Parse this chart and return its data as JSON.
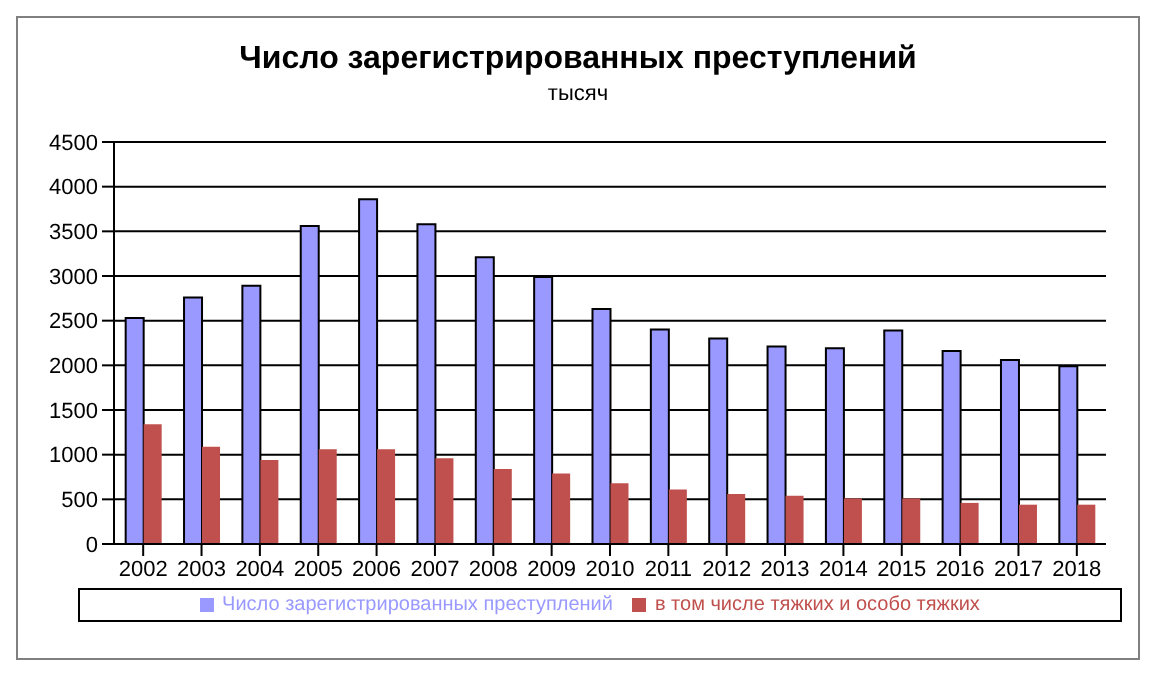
{
  "chart_data": {
    "type": "bar",
    "title": "Число зарегистрированных преступлений",
    "subtitle": "тысяч",
    "categories": [
      "2002",
      "2003",
      "2004",
      "2005",
      "2006",
      "2007",
      "2008",
      "2009",
      "2010",
      "2011",
      "2012",
      "2013",
      "2014",
      "2015",
      "2016",
      "2017",
      "2018"
    ],
    "series": [
      {
        "name": "Число зарегистрированных преступлений",
        "color": "#9999ff",
        "values": [
          2530,
          2760,
          2890,
          3560,
          3860,
          3580,
          3210,
          2990,
          2630,
          2400,
          2300,
          2210,
          2190,
          2390,
          2160,
          2060,
          1990
        ]
      },
      {
        "name": "в том числе тяжких и особо тяжких",
        "color": "#c0504d",
        "values": [
          1340,
          1090,
          940,
          1060,
          1060,
          960,
          840,
          790,
          680,
          610,
          560,
          540,
          510,
          510,
          460,
          440,
          440
        ]
      }
    ],
    "ylim": [
      0,
      4500
    ],
    "yticks": [
      0,
      500,
      1000,
      1500,
      2000,
      2500,
      3000,
      3500,
      4000,
      4500
    ],
    "grid": "y",
    "legend": "bottom"
  }
}
